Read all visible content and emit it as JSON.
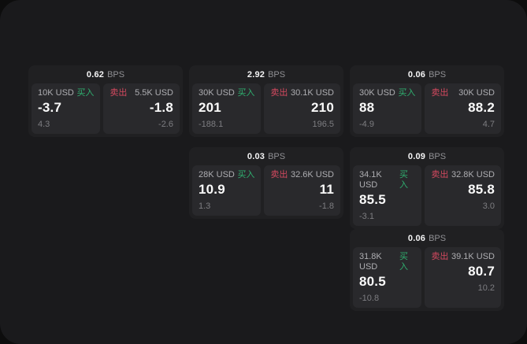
{
  "labels": {
    "bps_unit": "BPS",
    "buy": "买入",
    "sell": "卖出"
  },
  "colors": {
    "buy_green": "#2fae6f",
    "sell_red": "#d4495f",
    "window_bg": "#1a1a1c",
    "card_bg": "#202022",
    "panel_bg": "#29292c"
  },
  "cards": [
    {
      "bps": "0.62",
      "buy": {
        "size": "10K USD",
        "price": "-3.7",
        "delta": "4.3"
      },
      "sell": {
        "size": "5.5K USD",
        "price": "-1.8",
        "delta": "-2.6"
      }
    },
    {
      "bps": "2.92",
      "buy": {
        "size": "30K USD",
        "price": "201",
        "delta": "-188.1"
      },
      "sell": {
        "size": "30.1K USD",
        "price": "210",
        "delta": "196.5"
      }
    },
    {
      "bps": "0.06",
      "buy": {
        "size": "30K USD",
        "price": "88",
        "delta": "-4.9"
      },
      "sell": {
        "size": "30K USD",
        "price": "88.2",
        "delta": "4.7"
      }
    },
    {
      "bps": "0.03",
      "buy": {
        "size": "28K USD",
        "price": "10.9",
        "delta": "1.3"
      },
      "sell": {
        "size": "32.6K USD",
        "price": "11",
        "delta": "-1.8"
      }
    },
    {
      "bps": "0.09",
      "buy": {
        "size": "34.1K USD",
        "price": "85.5",
        "delta": "-3.1"
      },
      "sell": {
        "size": "32.8K USD",
        "price": "85.8",
        "delta": "3.0"
      }
    },
    {
      "bps": "0.06",
      "buy": {
        "size": "31.8K USD",
        "price": "80.5",
        "delta": "-10.8"
      },
      "sell": {
        "size": "39.1K USD",
        "price": "80.7",
        "delta": "10.2"
      }
    }
  ]
}
